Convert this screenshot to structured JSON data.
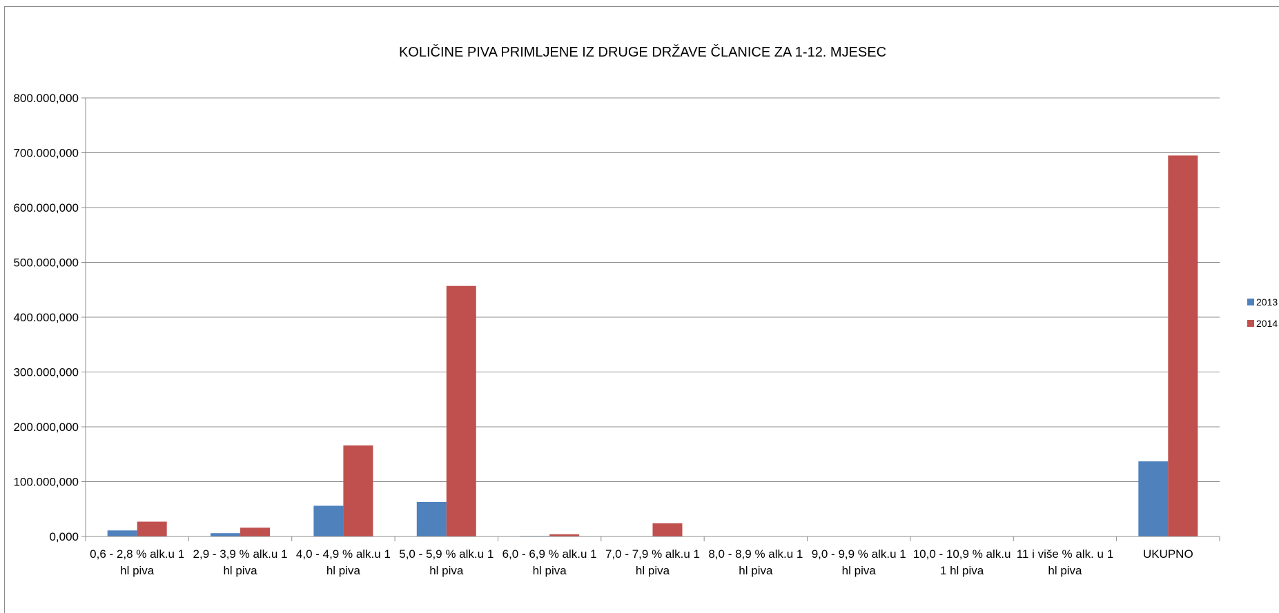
{
  "chart_data": {
    "type": "bar",
    "title": "KOLIČINE PIVA PRIMLJENE IZ DRUGE DRŽAVE ČLANICE  ZA 1-12. MJESEC",
    "xlabel": "",
    "ylabel": "",
    "ylim": [
      0,
      800000000
    ],
    "yticks": [
      0,
      100000000,
      200000000,
      300000000,
      400000000,
      500000000,
      600000000,
      700000000,
      800000000
    ],
    "ytick_labels": [
      "0,000",
      "100.000,000",
      "200.000,000",
      "300.000,000",
      "400.000,000",
      "500.000,000",
      "600.000,000",
      "700.000,000",
      "800.000,000"
    ],
    "categories": [
      [
        "0,6 -   2,8 % alk.u 1",
        "hl piva"
      ],
      [
        "2,9 -   3,9 % alk.u 1",
        "hl piva"
      ],
      [
        "4,0 -   4,9 % alk.u 1",
        "hl piva"
      ],
      [
        "5,0 -   5,9 % alk.u 1",
        "hl piva"
      ],
      [
        "6,0 -   6,9 % alk.u 1",
        "hl piva"
      ],
      [
        "7,0 -   7,9 % alk.u 1",
        "hl piva"
      ],
      [
        "8,0 -   8,9 % alk.u 1",
        "hl piva"
      ],
      [
        "9,0 -   9,9 % alk.u 1",
        "hl piva"
      ],
      [
        "10,0 - 10,9 % alk.u",
        "1 hl piva"
      ],
      [
        "11 i više % alk. u 1",
        "hl piva"
      ],
      [
        "UKUPNO"
      ]
    ],
    "series": [
      {
        "name": "2013",
        "color": "#4f81bd",
        "values": [
          11000000,
          6000000,
          56000000,
          63000000,
          1000000,
          500000,
          0,
          0,
          0,
          0,
          137000000
        ]
      },
      {
        "name": "2014",
        "color": "#c0504d",
        "values": [
          27000000,
          16000000,
          166000000,
          457000000,
          4000000,
          24000000,
          0,
          0,
          0,
          0,
          695000000
        ]
      }
    ],
    "grid": true,
    "legend_position": "right"
  }
}
